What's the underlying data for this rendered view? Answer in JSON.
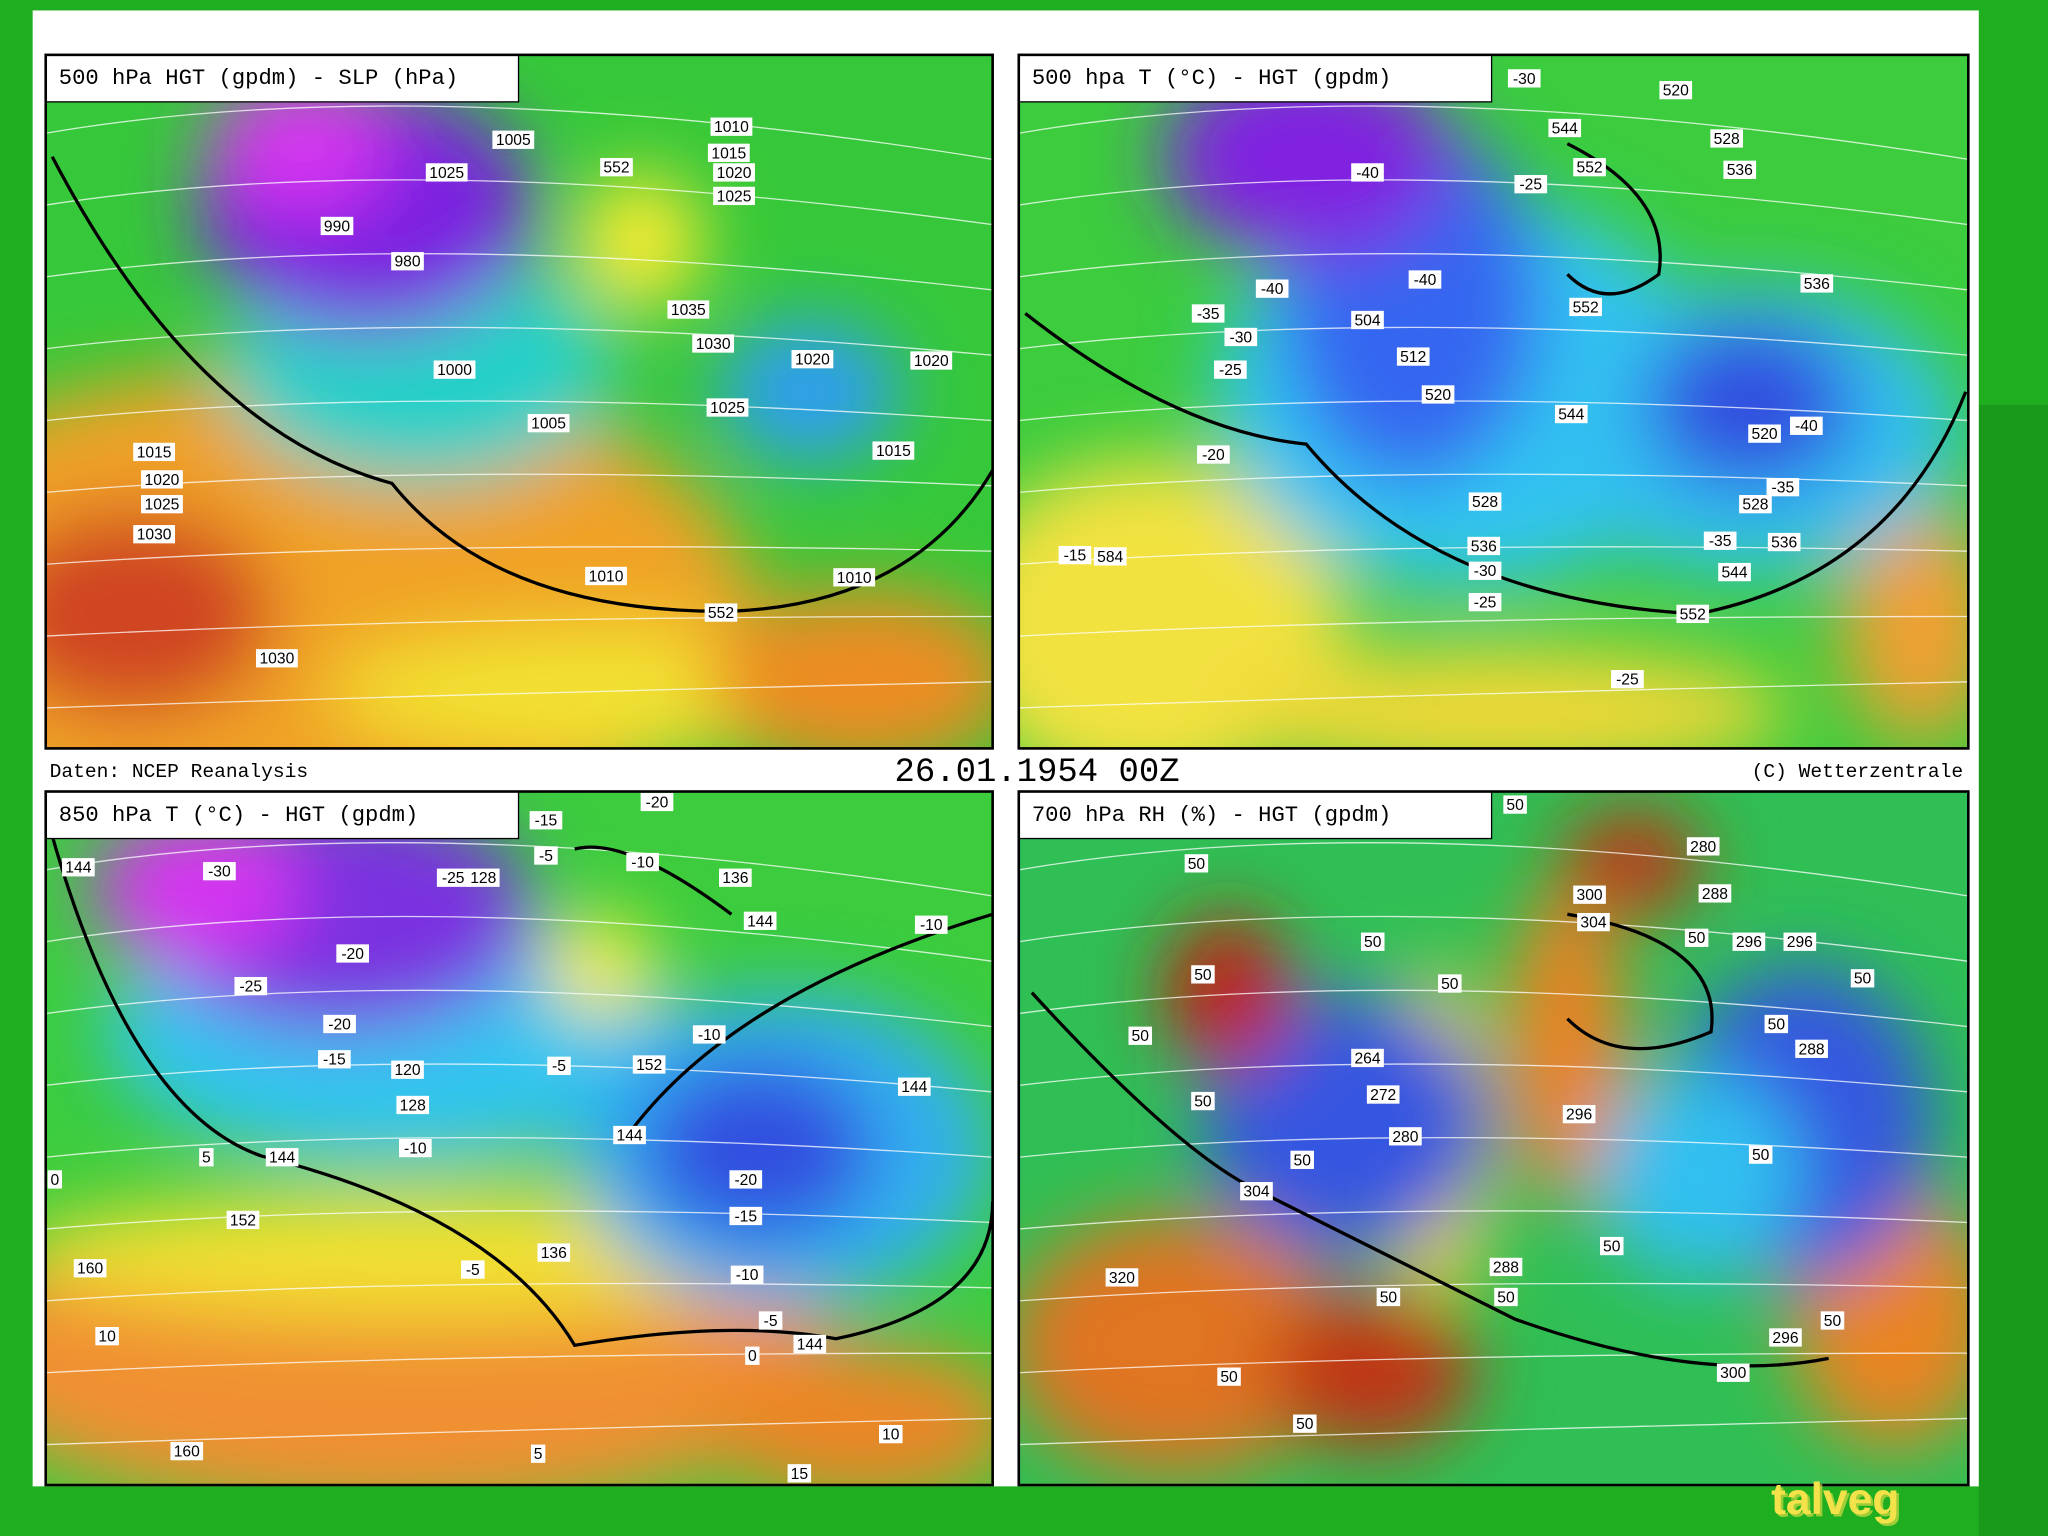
{
  "header": {
    "left": "Daten: NCEP Reanalysis",
    "center": "26.01.1954 00Z",
    "right": "(C) Wetterzentrale"
  },
  "panels": [
    {
      "title": "500 hPa HGT (gpdm) - SLP (hPa)",
      "labels": [
        "1010",
        "1015",
        "1020",
        "1025",
        "552",
        "1005",
        "1025",
        "990",
        "980",
        "1035",
        "1030",
        "1000",
        "1020",
        "1020",
        "1025",
        "1005",
        "1015",
        "1020",
        "1025",
        "1030",
        "1015",
        "1010",
        "1010",
        "552",
        "1030"
      ]
    },
    {
      "title": "500 hpa T (°C) - HGT (gpdm)",
      "labels": [
        "-30",
        "520",
        "544",
        "528",
        "-40",
        "552",
        "536",
        "-25",
        "-40",
        "-40",
        "536",
        "-35",
        "504",
        "552",
        "-30",
        "-25",
        "512",
        "520",
        "544",
        "520",
        "-40",
        "-20",
        "-35",
        "528",
        "528",
        "536",
        "-35",
        "536",
        "-15",
        "584",
        "-30",
        "544",
        "-25",
        "552",
        "-25"
      ]
    },
    {
      "title": "850 hPa T (°C) - HGT (gpdm)",
      "labels": [
        "-20",
        "-15",
        "144",
        "-30",
        "-25",
        "128",
        "-5",
        "-10",
        "136",
        "144",
        "-10",
        "-20",
        "-25",
        "-20",
        "-10",
        "-15",
        "120",
        "-5",
        "152",
        "128",
        "144",
        "144",
        "-10",
        "144",
        "-20",
        "-15",
        "152",
        "136",
        "-5",
        "160",
        "-10",
        "-5",
        "10",
        "144",
        "0",
        "10",
        "160",
        "5",
        "15",
        "0",
        "5"
      ]
    },
    {
      "title": "700 hPa RH (%) - HGT (gpdm)",
      "labels": [
        "50",
        "280",
        "50",
        "288",
        "300",
        "304",
        "50",
        "50",
        "296",
        "296",
        "50",
        "50",
        "50",
        "50",
        "50",
        "288",
        "264",
        "272",
        "50",
        "296",
        "280",
        "50",
        "50",
        "304",
        "50",
        "288",
        "320",
        "50",
        "50",
        "296",
        "50",
        "300",
        "50",
        "50"
      ]
    }
  ],
  "caption": "talveg"
}
